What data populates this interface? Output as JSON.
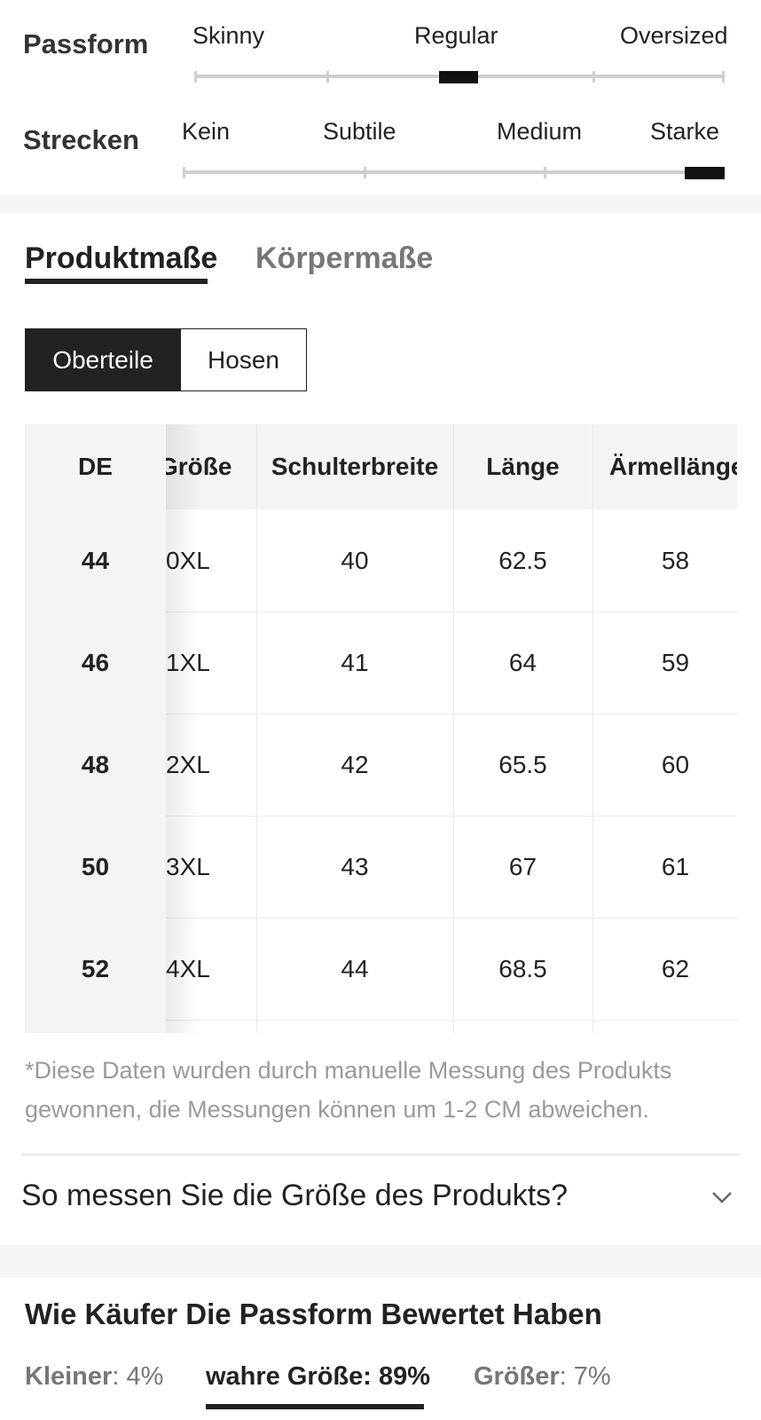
{
  "fit": {
    "label": "Passform",
    "options": [
      "Skinny",
      "Regular",
      "Oversized"
    ],
    "selected": "Regular"
  },
  "stretch": {
    "label": "Strecken",
    "options": [
      "Kein",
      "Subtile",
      "Medium",
      "Starke"
    ],
    "selected": "Starke"
  },
  "tabs": {
    "active": "Produktmaße",
    "inactive": "Körpermaße"
  },
  "segments": {
    "active": "Oberteile",
    "inactive": "Hosen"
  },
  "table": {
    "headers": [
      "DE",
      "Größe",
      "Schulterbreite",
      "Länge",
      "Ärmellänge"
    ],
    "rows": [
      [
        "44",
        "0XL",
        "40",
        "62.5",
        "58"
      ],
      [
        "46",
        "1XL",
        "41",
        "64",
        "59"
      ],
      [
        "48",
        "2XL",
        "42",
        "65.5",
        "60"
      ],
      [
        "50",
        "3XL",
        "43",
        "67",
        "61"
      ],
      [
        "52",
        "4XL",
        "44",
        "68.5",
        "62"
      ]
    ]
  },
  "note": "*Diese Daten wurden durch manuelle Messung des Produkts gewonnen, die Messungen können um 1-2 CM abweichen.",
  "how_to_measure": {
    "question": "So messen Sie die Größe des Produkts?",
    "icon": "chevron-down-icon"
  },
  "buyer_fit": {
    "title": "Wie Käufer Die Passform Bewertet Haben",
    "smaller": {
      "label": "Kleiner",
      "value": ": 4%"
    },
    "true_size": {
      "label": "wahre Größe",
      "value": ": 89%"
    },
    "larger": {
      "label": "Größer",
      "value": ": 7%"
    }
  },
  "colors": {
    "accent": "#222222",
    "muted": "#777777",
    "band": "#f5f5f5"
  }
}
